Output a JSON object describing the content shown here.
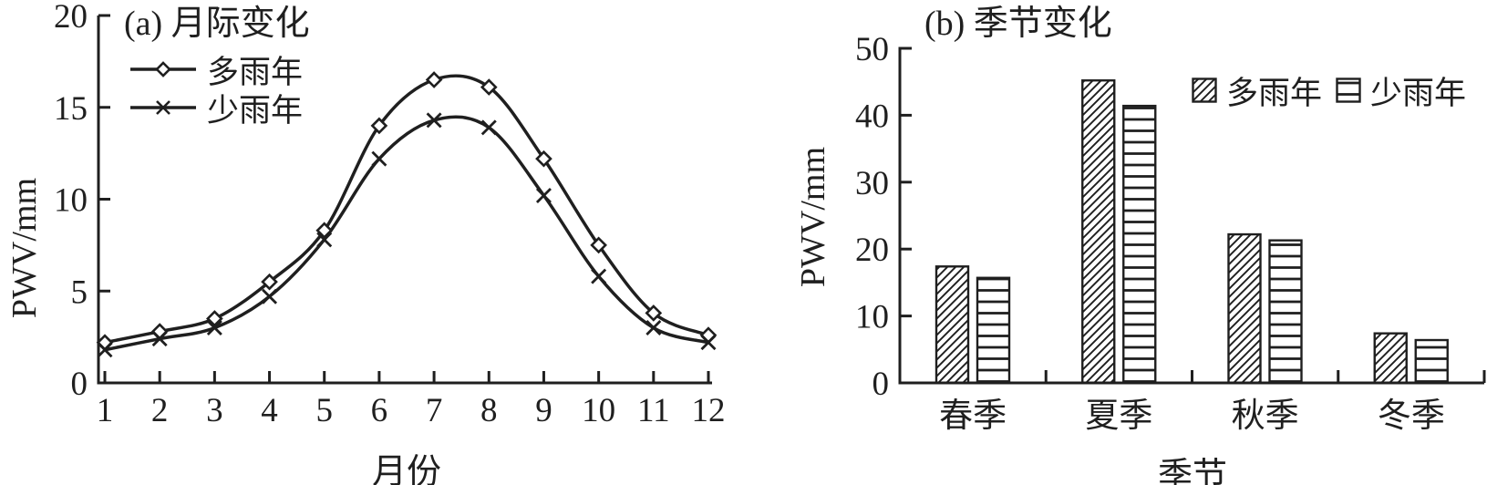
{
  "page": {
    "background": "#ffffff",
    "ink": "#1f1f1f"
  },
  "chart_data": [
    {
      "id": "monthly",
      "type": "line",
      "title": "(a) 月际变化",
      "xlabel": "月份",
      "ylabel": "PWV/mm",
      "x": [
        1,
        2,
        3,
        4,
        5,
        6,
        7,
        8,
        9,
        10,
        11,
        12
      ],
      "xlim": [
        1,
        12
      ],
      "ylim": [
        0,
        20
      ],
      "yticks": [
        0,
        5,
        10,
        15,
        20
      ],
      "grid": false,
      "legend_position": "top-left-inside",
      "series": [
        {
          "name": "多雨年",
          "marker": "diamond",
          "values": [
            2.2,
            2.8,
            3.5,
            5.5,
            8.3,
            14.0,
            16.5,
            16.1,
            12.2,
            7.5,
            3.8,
            2.6
          ]
        },
        {
          "name": "少雨年",
          "marker": "x",
          "values": [
            1.8,
            2.4,
            3.0,
            4.7,
            7.8,
            12.2,
            14.3,
            13.9,
            10.2,
            5.8,
            3.0,
            2.2
          ]
        }
      ]
    },
    {
      "id": "seasonal",
      "type": "bar",
      "title": "(b) 季节变化",
      "xlabel": "季节",
      "ylabel": "PWV/mm",
      "categories": [
        "春季",
        "夏季",
        "秋季",
        "冬季"
      ],
      "ylim": [
        0,
        50
      ],
      "yticks": [
        0,
        10,
        20,
        30,
        40,
        50
      ],
      "grid": false,
      "legend_position": "top-right-inside",
      "series": [
        {
          "name": "多雨年",
          "hatch": "diagonal",
          "values": [
            17.4,
            45.2,
            22.2,
            7.4
          ]
        },
        {
          "name": "少雨年",
          "hatch": "horizontal",
          "values": [
            15.7,
            41.4,
            21.3,
            6.4
          ]
        }
      ]
    }
  ]
}
